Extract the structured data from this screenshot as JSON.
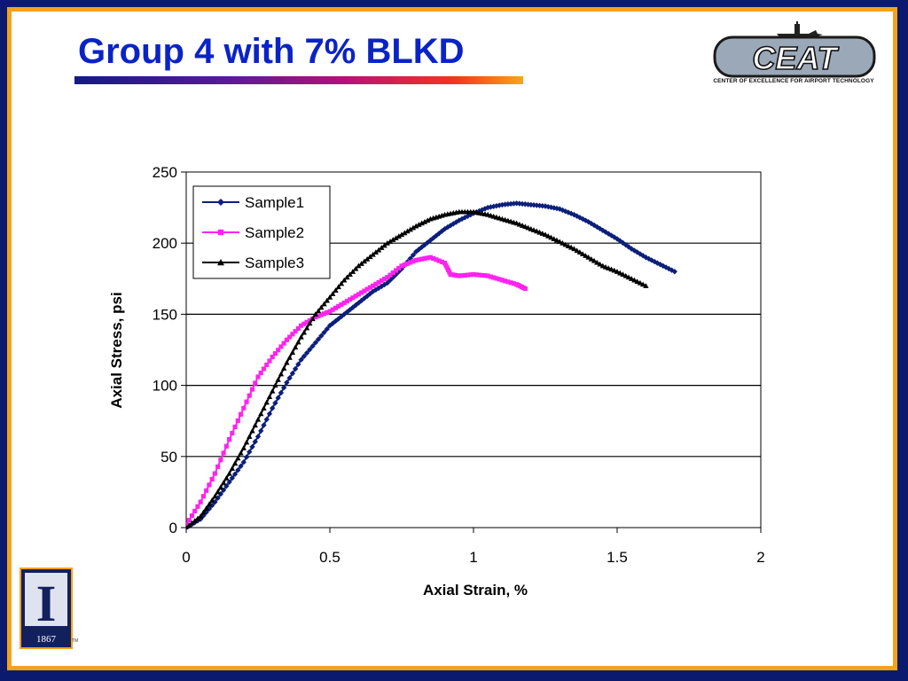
{
  "slide": {
    "title": "Group 4 with 7% BLKD",
    "logo_text": "CEAT",
    "logo_caption": "CENTER OF EXCELLENCE FOR AIRPORT TECHNOLOGY",
    "university_year": "1867",
    "university_letter": "I",
    "trademark": "TM"
  },
  "colors": {
    "frame_outer": "#0b1a6e",
    "frame_orange": "#f4a21c",
    "title": "#0a23c8",
    "sample1": "#0c1f7a",
    "sample2": "#ff22ee",
    "sample3": "#000000"
  },
  "chart_data": {
    "type": "line",
    "title": "",
    "xlabel": "Axial Strain, %",
    "ylabel": "Axial Stress, psi",
    "xlim": [
      0,
      2
    ],
    "ylim": [
      0,
      250
    ],
    "xticks": [
      "0",
      "0.5",
      "1",
      "1.5",
      "2"
    ],
    "yticks": [
      "0",
      "50",
      "100",
      "150",
      "200",
      "250"
    ],
    "grid": "horizontal",
    "legend_position": "top-left",
    "series": [
      {
        "name": "Sample1",
        "marker": "diamond",
        "points": [
          [
            0.0,
            0
          ],
          [
            0.05,
            6
          ],
          [
            0.1,
            18
          ],
          [
            0.15,
            32
          ],
          [
            0.2,
            46
          ],
          [
            0.25,
            64
          ],
          [
            0.3,
            84
          ],
          [
            0.35,
            102
          ],
          [
            0.4,
            118
          ],
          [
            0.45,
            130
          ],
          [
            0.5,
            142
          ],
          [
            0.55,
            150
          ],
          [
            0.6,
            158
          ],
          [
            0.65,
            166
          ],
          [
            0.7,
            172
          ],
          [
            0.75,
            182
          ],
          [
            0.8,
            194
          ],
          [
            0.85,
            202
          ],
          [
            0.9,
            210
          ],
          [
            0.95,
            216
          ],
          [
            1.0,
            221
          ],
          [
            1.05,
            225
          ],
          [
            1.1,
            227
          ],
          [
            1.15,
            228
          ],
          [
            1.2,
            227
          ],
          [
            1.25,
            226
          ],
          [
            1.3,
            224
          ],
          [
            1.35,
            220
          ],
          [
            1.4,
            215
          ],
          [
            1.45,
            209
          ],
          [
            1.5,
            203
          ],
          [
            1.55,
            196
          ],
          [
            1.6,
            190
          ],
          [
            1.65,
            185
          ],
          [
            1.7,
            180
          ]
        ]
      },
      {
        "name": "Sample2",
        "marker": "square",
        "points": [
          [
            0.0,
            2
          ],
          [
            0.05,
            18
          ],
          [
            0.1,
            38
          ],
          [
            0.15,
            62
          ],
          [
            0.2,
            84
          ],
          [
            0.25,
            106
          ],
          [
            0.3,
            120
          ],
          [
            0.35,
            132
          ],
          [
            0.4,
            142
          ],
          [
            0.45,
            148
          ],
          [
            0.5,
            152
          ],
          [
            0.55,
            158
          ],
          [
            0.6,
            164
          ],
          [
            0.65,
            170
          ],
          [
            0.7,
            176
          ],
          [
            0.75,
            184
          ],
          [
            0.8,
            188
          ],
          [
            0.85,
            190
          ],
          [
            0.9,
            186
          ],
          [
            0.92,
            178
          ],
          [
            0.95,
            177
          ],
          [
            1.0,
            178
          ],
          [
            1.05,
            177
          ],
          [
            1.1,
            174
          ],
          [
            1.15,
            171
          ],
          [
            1.18,
            168
          ]
        ]
      },
      {
        "name": "Sample3",
        "marker": "triangle",
        "points": [
          [
            0.0,
            0
          ],
          [
            0.05,
            8
          ],
          [
            0.1,
            22
          ],
          [
            0.15,
            38
          ],
          [
            0.2,
            56
          ],
          [
            0.25,
            76
          ],
          [
            0.3,
            96
          ],
          [
            0.35,
            116
          ],
          [
            0.4,
            134
          ],
          [
            0.45,
            150
          ],
          [
            0.5,
            162
          ],
          [
            0.55,
            174
          ],
          [
            0.6,
            184
          ],
          [
            0.65,
            192
          ],
          [
            0.7,
            200
          ],
          [
            0.75,
            206
          ],
          [
            0.8,
            212
          ],
          [
            0.85,
            217
          ],
          [
            0.9,
            220
          ],
          [
            0.95,
            222
          ],
          [
            1.0,
            222
          ],
          [
            1.05,
            220
          ],
          [
            1.1,
            217
          ],
          [
            1.15,
            214
          ],
          [
            1.2,
            210
          ],
          [
            1.25,
            206
          ],
          [
            1.3,
            201
          ],
          [
            1.35,
            196
          ],
          [
            1.4,
            190
          ],
          [
            1.45,
            184
          ],
          [
            1.5,
            180
          ],
          [
            1.55,
            175
          ],
          [
            1.6,
            170
          ]
        ]
      }
    ]
  }
}
